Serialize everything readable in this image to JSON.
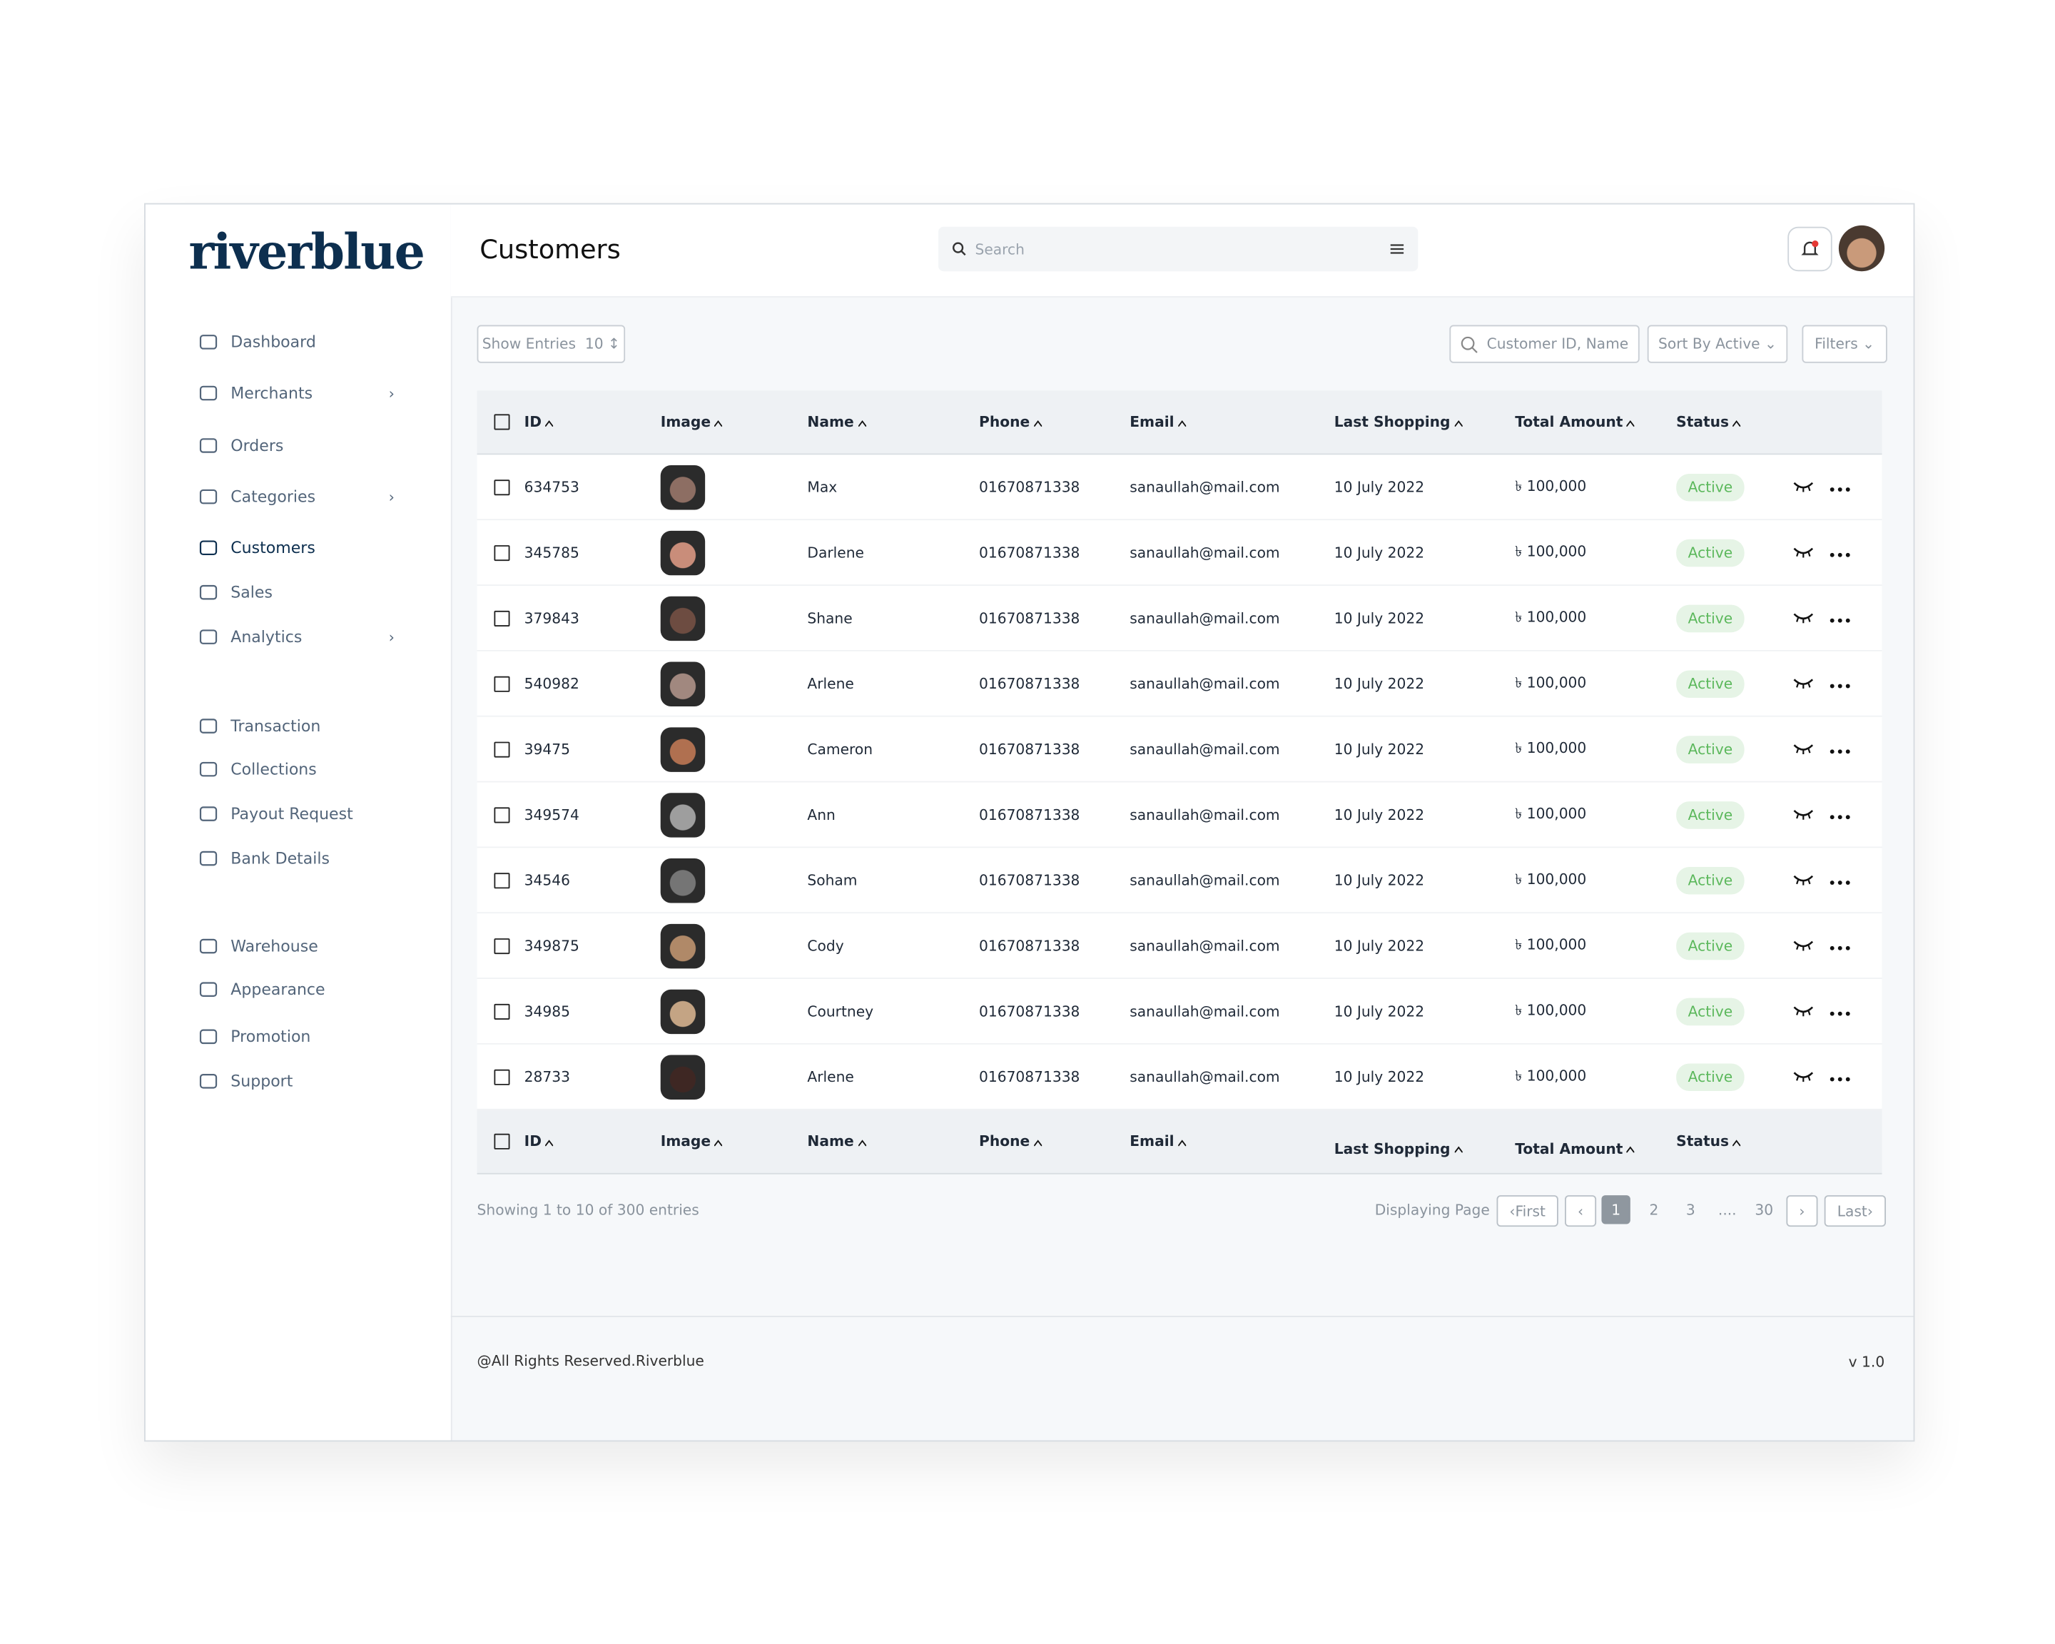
{
  "logo": "riverblue",
  "nav": [
    {
      "label": "Dashboard"
    },
    {
      "label": "Merchants",
      "more": "›"
    },
    {
      "label": "Orders"
    },
    {
      "label": "Categories",
      "more": "›"
    },
    {
      "label": "Customers"
    },
    {
      "label": "Sales"
    },
    {
      "label": "Analytics",
      "more": "›"
    },
    {
      "label": "Transaction"
    },
    {
      "label": "Collections"
    },
    {
      "label": "Payout Request"
    },
    {
      "label": "Bank Details"
    },
    {
      "label": "Warehouse"
    },
    {
      "label": "Appearance"
    },
    {
      "label": "Promotion"
    },
    {
      "label": "Support"
    }
  ],
  "header": {
    "title": "Customers",
    "search_placeholder": "Search"
  },
  "toolbar": {
    "show_entries": "Show Entries",
    "entries": "10",
    "customer_search": "Customer ID, Name",
    "sort": "Sort By Active",
    "filters": "Filters"
  },
  "table": {
    "columns": [
      "ID",
      "Image",
      "Name",
      "Phone",
      "Email",
      "Last Shopping",
      "Total Amount",
      "Status"
    ],
    "rows": [
      [
        "634753",
        "Max",
        "01670871338",
        "sanaullah@mail.com",
        "10 July 2022",
        "৳ 100,000",
        "Active"
      ],
      [
        "345785",
        "Darlene",
        "01670871338",
        "sanaullah@mail.com",
        "10 July 2022",
        "৳ 100,000",
        "Active"
      ],
      [
        "379843",
        "Shane",
        "01670871338",
        "sanaullah@mail.com",
        "10 July 2022",
        "৳ 100,000",
        "Active"
      ],
      [
        "540982",
        "Arlene",
        "01670871338",
        "sanaullah@mail.com",
        "10 July 2022",
        "৳ 100,000",
        "Active"
      ],
      [
        "39475",
        "Cameron",
        "01670871338",
        "sanaullah@mail.com",
        "10 July 2022",
        "৳ 100,000",
        "Active"
      ],
      [
        "349574",
        "Ann",
        "01670871338",
        "sanaullah@mail.com",
        "10 July 2022",
        "৳ 100,000",
        "Active"
      ],
      [
        "34546",
        "Soham",
        "01670871338",
        "sanaullah@mail.com",
        "10 July 2022",
        "৳ 100,000",
        "Active"
      ],
      [
        "349875",
        "Cody",
        "01670871338",
        "sanaullah@mail.com",
        "10 July 2022",
        "৳ 100,000",
        "Active"
      ],
      [
        "34985",
        "Courtney",
        "01670871338",
        "sanaullah@mail.com",
        "10 July 2022",
        "৳ 100,000",
        "Active"
      ],
      [
        "28733",
        "Arlene",
        "01670871338",
        "sanaullah@mail.com",
        "10 July 2022",
        "৳ 100,000",
        "Active"
      ]
    ]
  },
  "pagination": {
    "summary": "Showing 1 to 10 of 300 entries",
    "label": "Displaying Page",
    "first": "First",
    "pages": [
      "1",
      "2",
      "3",
      "....",
      "30"
    ],
    "last": "Last"
  },
  "footer": {
    "copyright": "@All Rights Reserved.Riverblue",
    "version": "v 1.0"
  }
}
